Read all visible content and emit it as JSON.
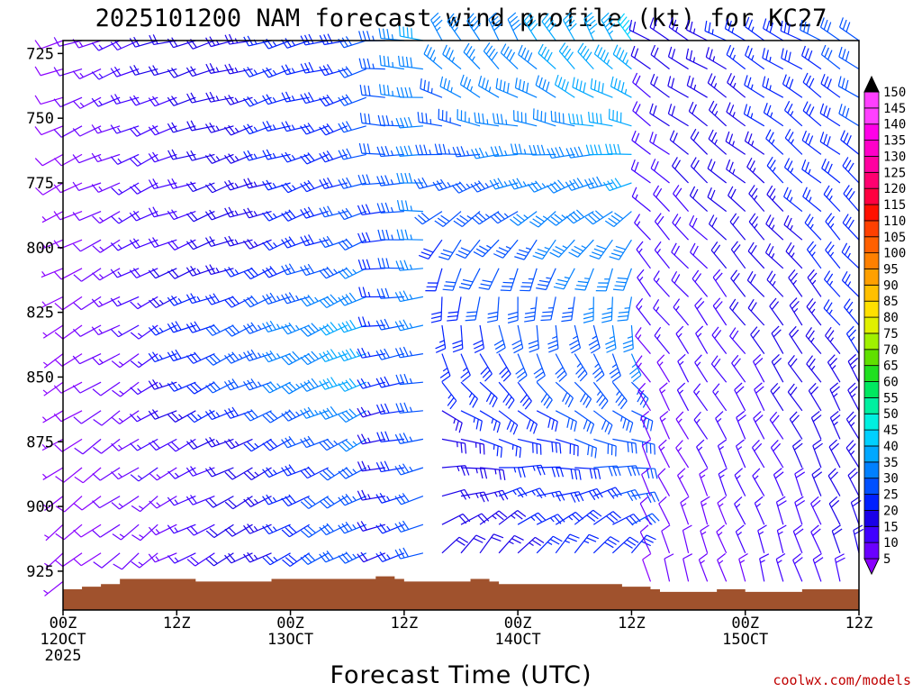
{
  "chart_data": {
    "type": "wind_barb_time_height",
    "title": "2025101200 NAM forecast wind profile (kt) for KC27",
    "xlabel": "Forecast Time (UTC)",
    "credit": "coolwx.com/models",
    "y_ticks": [
      "725",
      "750",
      "775",
      "800",
      "825",
      "850",
      "875",
      "900",
      "925"
    ],
    "y_range": [
      720,
      940
    ],
    "x_range_hours": [
      0,
      84
    ],
    "x_ticks": [
      {
        "hour": 0,
        "line1": "00Z",
        "line2": "12OCT",
        "line3": "2025"
      },
      {
        "hour": 12,
        "line1": "12Z",
        "line2": "",
        "line3": ""
      },
      {
        "hour": 24,
        "line1": "00Z",
        "line2": "13OCT",
        "line3": ""
      },
      {
        "hour": 36,
        "line1": "12Z",
        "line2": "",
        "line3": ""
      },
      {
        "hour": 48,
        "line1": "00Z",
        "line2": "14OCT",
        "line3": ""
      },
      {
        "hour": 60,
        "line1": "12Z",
        "line2": "",
        "line3": ""
      },
      {
        "hour": 72,
        "line1": "00Z",
        "line2": "15OCT",
        "line3": ""
      },
      {
        "hour": 84,
        "line1": "12Z",
        "line2": "",
        "line3": ""
      }
    ],
    "colorbar": {
      "levels": [
        5,
        10,
        15,
        20,
        25,
        30,
        35,
        40,
        45,
        50,
        55,
        60,
        65,
        70,
        75,
        80,
        85,
        90,
        95,
        100,
        105,
        110,
        115,
        120,
        125,
        130,
        135,
        140,
        145,
        150
      ],
      "labels": [
        "5",
        "10",
        "15",
        "20",
        "25",
        "30",
        "35",
        "40",
        "45",
        "50",
        "55",
        "60",
        "65",
        "70",
        "75",
        "80",
        "85",
        "90",
        "95",
        "100",
        "105",
        "110",
        "115",
        "120",
        "125",
        "130",
        "135",
        "140",
        "145",
        "150"
      ],
      "colors": [
        "#8a00ff",
        "#6a00ff",
        "#4000ff",
        "#1a00e8",
        "#0020ff",
        "#0050ff",
        "#0080ff",
        "#00a8ff",
        "#00d0ff",
        "#00f0e0",
        "#00f0a0",
        "#00e860",
        "#20e020",
        "#60e000",
        "#a0f000",
        "#e0f000",
        "#ffe000",
        "#ffc000",
        "#ffa000",
        "#ff8000",
        "#ff6000",
        "#ff4000",
        "#ff1000",
        "#ff0040",
        "#ff0070",
        "#ff00a0",
        "#ff00c8",
        "#ff00e8",
        "#ff40ff",
        "#000000"
      ]
    },
    "pressure_levels": [
      720,
      731,
      742,
      753,
      764,
      775,
      786,
      797,
      808,
      819,
      830,
      841,
      852,
      863,
      874,
      885,
      896,
      907,
      918,
      929
    ],
    "terrain_pressure_by_hour": [
      [
        0,
        932
      ],
      [
        2,
        931
      ],
      [
        4,
        930
      ],
      [
        6,
        928
      ],
      [
        12,
        928
      ],
      [
        14,
        929
      ],
      [
        20,
        929
      ],
      [
        22,
        928
      ],
      [
        32,
        928
      ],
      [
        33,
        927
      ],
      [
        35,
        928
      ],
      [
        36,
        929
      ],
      [
        42,
        929
      ],
      [
        43,
        928
      ],
      [
        45,
        929
      ],
      [
        46,
        930
      ],
      [
        58,
        930
      ],
      [
        59,
        931
      ],
      [
        62,
        932
      ],
      [
        63,
        933
      ],
      [
        68,
        933
      ],
      [
        69,
        932
      ],
      [
        72,
        933
      ],
      [
        77,
        933
      ],
      [
        78,
        932
      ],
      [
        84,
        931
      ]
    ],
    "wind_regimes": [
      {
        "hours": [
          0,
          11
        ],
        "dir_deg_upper": 250,
        "dir_deg_lower": 230,
        "speed_kt_upper": [
          8,
          22
        ],
        "speed_kt_lower": [
          6,
          14
        ]
      },
      {
        "hours": [
          11,
          32
        ],
        "dir_deg_upper": 255,
        "dir_deg_lower": 240,
        "speed_kt_upper": [
          20,
          30
        ],
        "speed_kt_lower": [
          12,
          35
        ]
      },
      {
        "hours": [
          32,
          38
        ],
        "dir_deg_upper": 275,
        "dir_deg_lower": 250,
        "speed_kt_upper": [
          30,
          40
        ],
        "speed_kt_lower": [
          15,
          30
        ]
      },
      {
        "hours": [
          38,
          60
        ],
        "dir_deg_upper": 330,
        "dir_deg_lower": 10,
        "speed_kt_upper": [
          35,
          45
        ],
        "speed_kt_lower": [
          18,
          28
        ]
      },
      {
        "hours": [
          60,
          84
        ],
        "dir_deg_upper": 300,
        "dir_deg_lower": 345,
        "speed_kt_upper": [
          20,
          32
        ],
        "speed_kt_lower": [
          8,
          20
        ]
      }
    ]
  }
}
